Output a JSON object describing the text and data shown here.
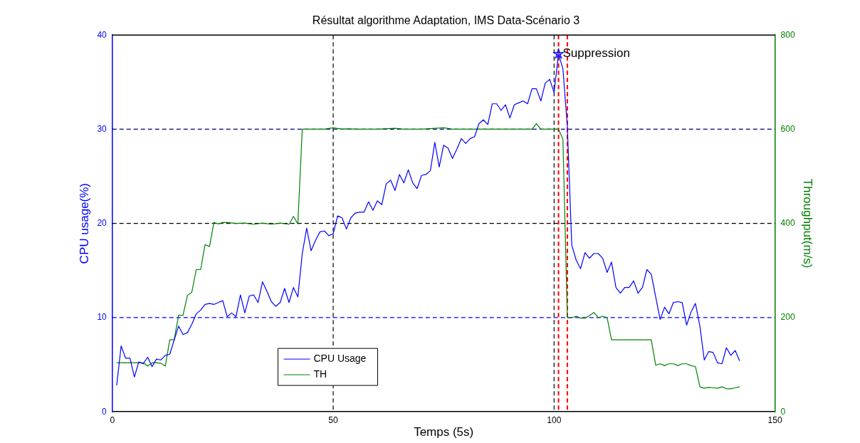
{
  "chart_data": {
    "type": "line",
    "title": "Résultat algorithme Adaptation, IMS Data-Scénario 3",
    "xlabel": "Temps (5s)",
    "ylabel": "CPU usage(%)",
    "y2label": "Throughput(m/s)",
    "xlim": [
      0,
      150
    ],
    "xticks": [
      0,
      50,
      100,
      150
    ],
    "ylim": [
      0,
      40
    ],
    "yticks": [
      0,
      10,
      20,
      30,
      40
    ],
    "y2lim": [
      0,
      800
    ],
    "y2ticks": [
      0,
      200,
      400,
      600,
      800
    ],
    "grid": false,
    "legend": "bottom left",
    "line_style": "solid",
    "series": [
      {
        "name": "CPU Usage",
        "color": "#0000ff",
        "x": [
          1,
          2,
          3,
          4,
          5,
          6,
          7,
          8,
          9,
          10,
          11,
          12,
          13,
          14,
          15,
          16,
          17,
          18,
          19,
          20,
          21,
          22,
          23,
          24,
          25,
          26,
          27,
          28,
          29,
          30,
          31,
          32,
          33,
          34,
          35,
          36,
          37,
          38,
          39,
          40,
          41,
          42,
          43,
          44,
          45,
          46,
          47,
          48,
          49,
          50,
          51,
          52,
          53,
          54,
          55,
          56,
          57,
          58,
          59,
          60,
          61,
          62,
          63,
          64,
          65,
          66,
          67,
          68,
          69,
          70,
          71,
          72,
          73,
          74,
          75,
          76,
          77,
          78,
          79,
          80,
          81,
          82,
          83,
          84,
          85,
          86,
          87,
          88,
          89,
          90,
          91,
          92,
          93,
          94,
          95,
          96,
          97,
          98,
          99,
          100,
          101,
          102,
          103,
          104,
          105,
          106,
          107,
          108,
          109,
          110,
          111,
          112,
          113,
          114,
          115,
          116,
          117,
          118,
          119,
          120,
          121,
          122,
          123,
          124,
          125,
          126,
          127,
          128,
          129,
          130,
          131,
          132,
          133,
          134,
          135,
          136,
          137,
          138,
          139,
          140,
          141,
          142
        ],
        "values": [
          2.8,
          7,
          5.7,
          5.7,
          3.7,
          5.3,
          5.1,
          5.8,
          4.8,
          5.6,
          5.5,
          6,
          6.1,
          7.6,
          9.1,
          8.2,
          8.4,
          9.3,
          10.4,
          10.8,
          11.4,
          11.5,
          11.4,
          11.6,
          11.8,
          10.1,
          10.5,
          10.1,
          12.4,
          10.5,
          12.3,
          12.4,
          11.6,
          13.8,
          12.8,
          11.7,
          11.2,
          11.6,
          13.1,
          11.6,
          13.2,
          12.2,
          16.8,
          19.5,
          17.1,
          18.2,
          19.1,
          19.2,
          18.7,
          18.9,
          20.8,
          20.6,
          19.4,
          20.6,
          21.1,
          21.2,
          21.2,
          22.3,
          21.4,
          22.4,
          22,
          24.2,
          24.6,
          23.5,
          25.2,
          24.3,
          25.7,
          24.3,
          23.7,
          25.1,
          25.2,
          25.6,
          28.6,
          26,
          28.3,
          28,
          26.9,
          27.9,
          29,
          28.5,
          29,
          29.2,
          30.6,
          31,
          30.5,
          32.7,
          32.7,
          32,
          32.6,
          31.2,
          32.6,
          32.8,
          33,
          32.7,
          34.3,
          34.3,
          33,
          34.9,
          35.3,
          33.9,
          38,
          36.4,
          30.3,
          17.7,
          16.1,
          15.2,
          16.9,
          16.3,
          16.8,
          16.8,
          16.3,
          14.8,
          15.9,
          13.2,
          12.6,
          13.2,
          13.2,
          13.9,
          12.6,
          13.2,
          15.1,
          14.6,
          12.2,
          9.8,
          11.1,
          10.4,
          11.6,
          11.7,
          11.6,
          9.2,
          10.6,
          11.5,
          9.1,
          5.5,
          6.4,
          6.3,
          5.2,
          5.1,
          6.8,
          6,
          6.5,
          5.4
        ]
      },
      {
        "name": "TH",
        "color": "#008000",
        "axis": "y2",
        "x": [
          1,
          2,
          3,
          4,
          5,
          6,
          7,
          8,
          9,
          10,
          11,
          12,
          13,
          14,
          15,
          16,
          17,
          18,
          19,
          20,
          21,
          22,
          23,
          24,
          25,
          26,
          28,
          30,
          32,
          34,
          36,
          38,
          40,
          41,
          42,
          43,
          44,
          48,
          50,
          52,
          53,
          56,
          60,
          64,
          66,
          70,
          75,
          77,
          80,
          85,
          90,
          95,
          96,
          97,
          100,
          101,
          102,
          103,
          104,
          105,
          106,
          107,
          108,
          109,
          110,
          111,
          112,
          113,
          122,
          123,
          124,
          125,
          126,
          127,
          128,
          129,
          130,
          131,
          132,
          133,
          134,
          135,
          136,
          137,
          138,
          139,
          140,
          141,
          142
        ],
        "values": [
          104,
          104,
          104,
          104,
          104,
          104,
          104,
          97,
          104,
          104,
          103,
          97,
          153,
          153,
          205,
          205,
          247,
          254,
          302,
          302,
          355,
          351,
          402,
          399,
          402,
          402,
          400,
          401,
          398,
          401,
          398,
          401,
          398,
          415,
          399,
          600,
          600,
          600,
          603,
          600,
          601,
          600,
          600,
          602,
          600,
          600,
          603,
          600,
          600,
          600,
          600,
          600,
          612,
          600,
          600,
          600,
          579,
          200,
          200,
          203,
          199,
          199,
          204,
          211,
          200,
          203,
          200,
          153,
          153,
          99,
          102,
          98,
          102,
          102,
          98,
          102,
          102,
          98,
          96,
          53,
          50,
          52,
          51,
          50,
          53,
          49,
          49,
          51,
          53
        ]
      },
      {
        "type": "scatter",
        "color": "#0000ff",
        "marker": "star",
        "x": [
          101
        ],
        "values": [
          38
        ]
      }
    ],
    "ref_lines": [
      {
        "axis": "y",
        "value": 10,
        "color": "#0000ff",
        "line_style": "dashed"
      },
      {
        "axis": "y",
        "value": 20,
        "color": "#000000",
        "line_style": "dashed"
      },
      {
        "axis": "y",
        "value": 30,
        "color": "#000080",
        "line_style": "dashed"
      },
      {
        "axis": "x",
        "value": 50,
        "color": "#000000",
        "line_style": "dashed"
      },
      {
        "axis": "x",
        "value": 100,
        "color": "#000000",
        "line_style": "dashed"
      },
      {
        "axis": "x",
        "value": 101,
        "color": "#ff0000",
        "line_style": "dashed"
      },
      {
        "axis": "x",
        "value": 103,
        "color": "#ff0000",
        "line_style": "dashed"
      }
    ],
    "annotations": [
      {
        "text": "Suppression",
        "x": 101,
        "y": 38
      }
    ]
  }
}
